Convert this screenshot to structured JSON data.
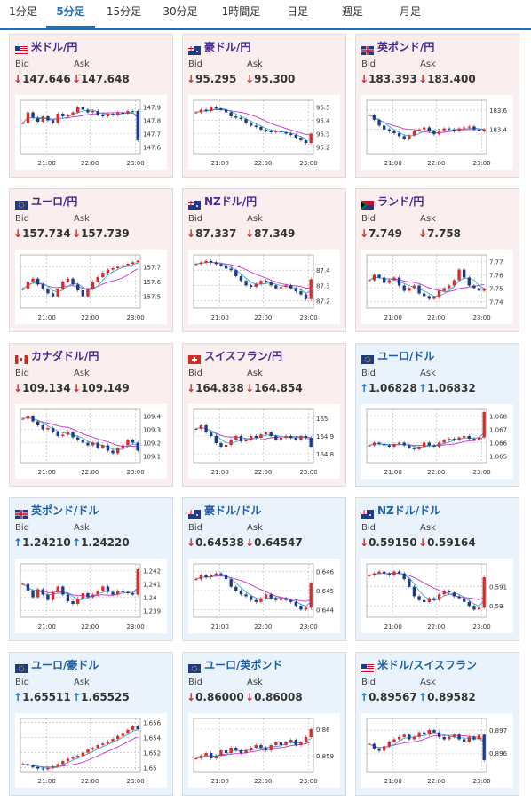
{
  "tabs": [
    "1分足",
    "5分足",
    "15分足",
    "30分足",
    "1時間足",
    "日足",
    "週足",
    "月足"
  ],
  "active_tab": 1,
  "bid_label": "Bid",
  "ask_label": "Ask",
  "colors": {
    "up": "#1f6fc1",
    "down": "#d03030",
    "ma": "#cc33cc",
    "ma2": "#33aacc",
    "tab_active": "#1f6fc1"
  },
  "chart_data": [
    {
      "pair": "米ドル/円",
      "flag": "US",
      "panel": "pink",
      "bid": "147.646",
      "ask": "147.648",
      "dir": "down",
      "type": "line",
      "x_ticks": [
        "21:00",
        "22:00",
        "23:00"
      ],
      "y_ticks": [
        "147.9",
        "147.8",
        "147.7",
        "147.6"
      ],
      "ylim": [
        147.55,
        147.95
      ],
      "values": [
        147.78,
        147.86,
        147.82,
        147.79,
        147.83,
        147.8,
        147.78,
        147.85,
        147.83,
        147.84,
        147.86,
        147.9,
        147.88,
        147.86,
        147.87,
        147.84,
        147.83,
        147.85,
        147.84,
        147.86,
        147.85,
        147.87,
        147.87,
        147.65
      ]
    },
    {
      "pair": "豪ドル/円",
      "flag": "AU",
      "panel": "pink",
      "bid": "95.295",
      "ask": "95.300",
      "dir": "down",
      "type": "line",
      "x_ticks": [
        "21:00",
        "22:00",
        "23:00"
      ],
      "y_ticks": [
        "95.5",
        "95.4",
        "95.3",
        "95.2"
      ],
      "ylim": [
        95.15,
        95.55
      ],
      "values": [
        95.46,
        95.48,
        95.47,
        95.5,
        95.49,
        95.48,
        95.46,
        95.43,
        95.42,
        95.41,
        95.38,
        95.36,
        95.35,
        95.33,
        95.32,
        95.31,
        95.32,
        95.31,
        95.3,
        95.29,
        95.27,
        95.25,
        95.23,
        95.3
      ]
    },
    {
      "pair": "英ポンド/円",
      "flag": "GB",
      "panel": "pink",
      "bid": "183.393",
      "ask": "183.400",
      "dir": "down",
      "type": "line",
      "x_ticks": [
        "21:00",
        "22:00",
        "23:00"
      ],
      "y_ticks": [
        "183.6",
        "183.4"
      ],
      "ylim": [
        183.15,
        183.7
      ],
      "values": [
        183.55,
        183.5,
        183.44,
        183.4,
        183.38,
        183.36,
        183.33,
        183.3,
        183.34,
        183.38,
        183.4,
        183.42,
        183.38,
        183.35,
        183.39,
        183.41,
        183.4,
        183.38,
        183.41,
        183.42,
        183.43,
        183.4,
        183.38,
        183.4
      ]
    },
    {
      "pair": "ユーロ/円",
      "flag": "EU",
      "panel": "pink",
      "bid": "157.734",
      "ask": "157.739",
      "dir": "down",
      "type": "line",
      "x_ticks": [
        "21:00",
        "22:00",
        "23:00"
      ],
      "y_ticks": [
        "157.7",
        "157.6",
        "157.5"
      ],
      "ylim": [
        157.42,
        157.78
      ],
      "values": [
        157.55,
        157.6,
        157.62,
        157.58,
        157.55,
        157.52,
        157.5,
        157.55,
        157.6,
        157.62,
        157.58,
        157.54,
        157.5,
        157.55,
        157.6,
        157.63,
        157.66,
        157.68,
        157.69,
        157.7,
        157.71,
        157.72,
        157.73,
        157.74
      ]
    },
    {
      "pair": "NZドル/円",
      "flag": "NZ",
      "panel": "pink",
      "bid": "87.337",
      "ask": "87.349",
      "dir": "down",
      "type": "line",
      "x_ticks": [
        "21:00",
        "22:00",
        "23:00"
      ],
      "y_ticks": [
        "87.4",
        "87.3",
        "87.2"
      ],
      "ylim": [
        87.15,
        87.5
      ],
      "values": [
        87.44,
        87.45,
        87.46,
        87.45,
        87.44,
        87.43,
        87.41,
        87.4,
        87.36,
        87.33,
        87.3,
        87.29,
        87.31,
        87.33,
        87.32,
        87.3,
        87.28,
        87.29,
        87.3,
        87.28,
        87.26,
        87.24,
        87.21,
        87.34
      ]
    },
    {
      "pair": "ランド/円",
      "flag": "ZA",
      "panel": "pink",
      "bid": "7.749",
      "ask": "7.758",
      "dir": "down",
      "type": "line",
      "x_ticks": [
        "21:00",
        "22:00",
        "23:00"
      ],
      "y_ticks": [
        "7.77",
        "7.76",
        "7.75",
        "7.74"
      ],
      "ylim": [
        7.735,
        7.775
      ],
      "values": [
        7.756,
        7.76,
        7.758,
        7.754,
        7.756,
        7.758,
        7.752,
        7.748,
        7.75,
        7.752,
        7.746,
        7.744,
        7.742,
        7.743,
        7.748,
        7.75,
        7.752,
        7.756,
        7.764,
        7.758,
        7.752,
        7.75,
        7.748,
        7.749
      ]
    },
    {
      "pair": "カナダドル/円",
      "flag": "CA",
      "panel": "pink",
      "bid": "109.134",
      "ask": "109.149",
      "dir": "down",
      "type": "line",
      "x_ticks": [
        "21:00",
        "22:00",
        "23:00"
      ],
      "y_ticks": [
        "109.4",
        "109.3",
        "109.2",
        "109.1"
      ],
      "ylim": [
        109.05,
        109.45
      ],
      "values": [
        109.38,
        109.4,
        109.36,
        109.33,
        109.3,
        109.31,
        109.28,
        109.25,
        109.26,
        109.28,
        109.24,
        109.22,
        109.2,
        109.18,
        109.2,
        109.16,
        109.18,
        109.14,
        109.12,
        109.16,
        109.18,
        109.22,
        109.2,
        109.14
      ]
    },
    {
      "pair": "スイスフラン/円",
      "flag": "CH",
      "panel": "pink",
      "bid": "164.838",
      "ask": "164.854",
      "dir": "down",
      "type": "line",
      "x_ticks": [
        "21:00",
        "22:00",
        "23:00"
      ],
      "y_ticks": [
        "165",
        "164.9",
        "164.8"
      ],
      "ylim": [
        164.75,
        165.05
      ],
      "values": [
        164.94,
        164.96,
        164.92,
        164.9,
        164.86,
        164.84,
        164.85,
        164.88,
        164.9,
        164.87,
        164.88,
        164.9,
        164.89,
        164.91,
        164.92,
        164.9,
        164.88,
        164.89,
        164.9,
        164.89,
        164.88,
        164.9,
        164.89,
        164.84
      ]
    },
    {
      "pair": "ユーロ/ドル",
      "flag": "EU-US",
      "panel": "blue",
      "bid": "1.06828",
      "ask": "1.06832",
      "dir": "up",
      "type": "line",
      "x_ticks": [
        "21:00",
        "22:00",
        "23:00"
      ],
      "y_ticks": [
        "1.068",
        "1.067",
        "1.066",
        "1.065"
      ],
      "ylim": [
        1.0645,
        1.0685
      ],
      "values": [
        1.0658,
        1.066,
        1.0659,
        1.0658,
        1.0657,
        1.0659,
        1.066,
        1.0658,
        1.0656,
        1.0655,
        1.0657,
        1.066,
        1.0658,
        1.0657,
        1.066,
        1.0662,
        1.0663,
        1.0662,
        1.0664,
        1.0665,
        1.0663,
        1.0662,
        1.0664,
        1.0683
      ]
    },
    {
      "pair": "英ポンド/ドル",
      "flag": "GB-US",
      "panel": "blue",
      "bid": "1.24210",
      "ask": "1.24220",
      "dir": "up",
      "type": "line",
      "x_ticks": [
        "21:00",
        "22:00",
        "23:00"
      ],
      "y_ticks": [
        "1.242",
        "1.241",
        "1.24",
        "1.239"
      ],
      "ylim": [
        1.2385,
        1.2425
      ],
      "values": [
        1.241,
        1.2405,
        1.24,
        1.2406,
        1.2402,
        1.2398,
        1.2404,
        1.2408,
        1.2402,
        1.2397,
        1.2395,
        1.2399,
        1.2403,
        1.24,
        1.2402,
        1.2405,
        1.2408,
        1.2404,
        1.2402,
        1.2405,
        1.2404,
        1.2403,
        1.2402,
        1.2421
      ]
    },
    {
      "pair": "豪ドル/ドル",
      "flag": "AU-US",
      "panel": "blue",
      "bid": "0.64538",
      "ask": "0.64547",
      "dir": "down",
      "type": "line",
      "x_ticks": [
        "21:00",
        "22:00",
        "23:00"
      ],
      "y_ticks": [
        "0.646",
        "0.645",
        "0.644"
      ],
      "ylim": [
        0.6436,
        0.6464
      ],
      "values": [
        0.6456,
        0.6458,
        0.6457,
        0.6458,
        0.6459,
        0.6458,
        0.6456,
        0.6452,
        0.645,
        0.6448,
        0.6447,
        0.6445,
        0.6444,
        0.6446,
        0.6448,
        0.6446,
        0.6445,
        0.6446,
        0.6445,
        0.6444,
        0.6442,
        0.644,
        0.6441,
        0.6454
      ]
    },
    {
      "pair": "NZドル/ドル",
      "flag": "NZ-US",
      "panel": "blue",
      "bid": "0.59150",
      "ask": "0.59164",
      "dir": "down",
      "type": "line",
      "x_ticks": [
        "21:00",
        "22:00",
        "23:00"
      ],
      "y_ticks": [
        "0.591",
        "0.59"
      ],
      "ylim": [
        0.5894,
        0.5922
      ],
      "values": [
        0.5916,
        0.5917,
        0.5918,
        0.5917,
        0.5916,
        0.5918,
        0.5917,
        0.5914,
        0.591,
        0.5905,
        0.5903,
        0.5902,
        0.5904,
        0.5903,
        0.5906,
        0.5908,
        0.5907,
        0.5905,
        0.5904,
        0.5902,
        0.59,
        0.5898,
        0.5899,
        0.5915
      ]
    },
    {
      "pair": "ユーロ/豪ドル",
      "flag": "EU-AU",
      "panel": "blue",
      "bid": "1.65511",
      "ask": "1.65525",
      "dir": "up",
      "type": "line",
      "x_ticks": [
        "21:00",
        "22:00",
        "23:00"
      ],
      "y_ticks": [
        "1.656",
        "1.654",
        "1.652",
        "1.65"
      ],
      "ylim": [
        1.6495,
        1.6565
      ],
      "values": [
        1.6505,
        1.6503,
        1.6501,
        1.6499,
        1.6498,
        1.65,
        1.6502,
        1.6505,
        1.6509,
        1.6512,
        1.6514,
        1.6516,
        1.652,
        1.6524,
        1.6526,
        1.653,
        1.6532,
        1.6535,
        1.6538,
        1.6542,
        1.6546,
        1.655,
        1.6555,
        1.6551
      ]
    },
    {
      "pair": "ユーロ/英ポンド",
      "flag": "EU-GB",
      "panel": "blue",
      "bid": "0.86000",
      "ask": "0.86008",
      "dir": "down",
      "type": "line",
      "x_ticks": [
        "21:00",
        "22:00",
        "23:00"
      ],
      "y_ticks": [
        "0.86",
        "0.859"
      ],
      "ylim": [
        0.8584,
        0.8604
      ],
      "values": [
        0.8589,
        0.859,
        0.8591,
        0.8589,
        0.859,
        0.8592,
        0.8591,
        0.8593,
        0.8592,
        0.8591,
        0.8592,
        0.8593,
        0.8594,
        0.8593,
        0.8592,
        0.8594,
        0.8595,
        0.8594,
        0.8595,
        0.8596,
        0.8594,
        0.8595,
        0.8597,
        0.86
      ]
    },
    {
      "pair": "米ドル/スイスフラン",
      "flag": "US-CH",
      "panel": "blue",
      "bid": "0.89567",
      "ask": "0.89582",
      "dir": "up",
      "type": "line",
      "x_ticks": [
        "21:00",
        "22:00",
        "23:00"
      ],
      "y_ticks": [
        "0.897",
        "0.896"
      ],
      "ylim": [
        0.8952,
        0.8975
      ],
      "values": [
        0.8964,
        0.8962,
        0.8961,
        0.8963,
        0.8965,
        0.8966,
        0.8967,
        0.8968,
        0.8966,
        0.8967,
        0.8969,
        0.8968,
        0.897,
        0.8969,
        0.8967,
        0.8966,
        0.8967,
        0.8968,
        0.8966,
        0.8965,
        0.8967,
        0.8966,
        0.8968,
        0.8957
      ]
    }
  ]
}
